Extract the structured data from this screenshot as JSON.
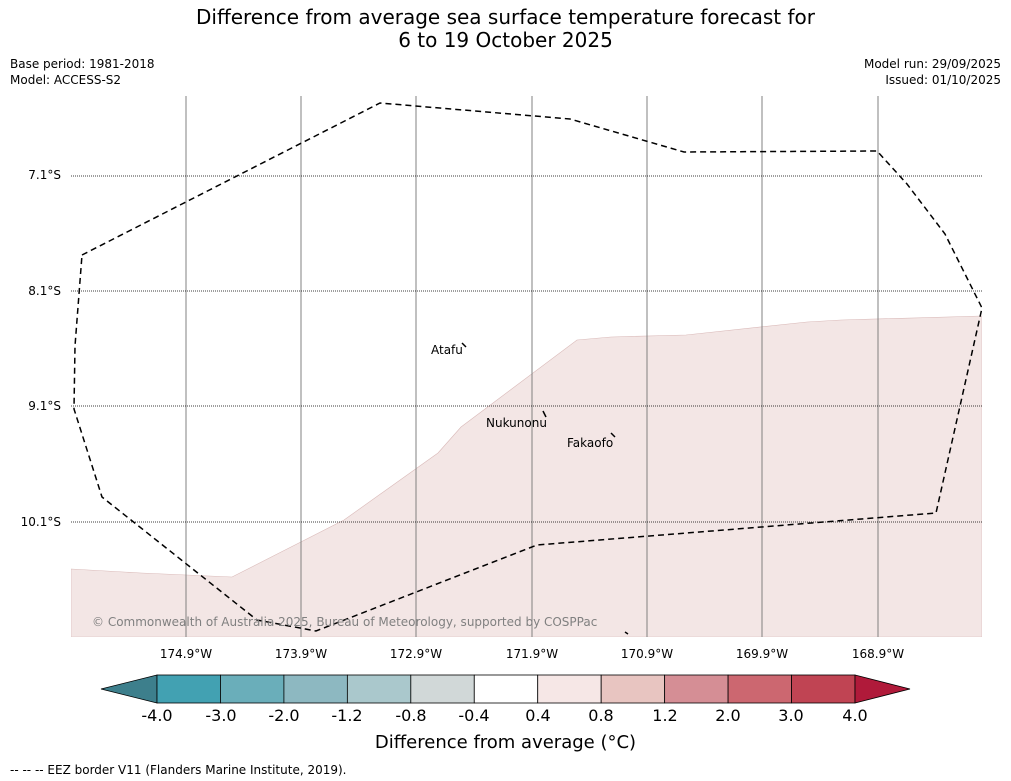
{
  "title_line1": "Difference from average sea surface temperature forecast for",
  "title_line2": "6 to 19 October 2025",
  "base_period": "Base period: 1981-2018",
  "model": "Model: ACCESS-S2",
  "model_run": "Model run: 29/09/2025",
  "issued": "Issued: 01/10/2025",
  "lat_labels": [
    "7.1°S",
    "8.1°S",
    "9.1°S",
    "10.1°S"
  ],
  "lon_labels": [
    "174.9°W",
    "173.9°W",
    "172.9°W",
    "171.9°W",
    "170.9°W",
    "169.9°W",
    "168.9°W"
  ],
  "places": {
    "atafu": "Atafu",
    "nukunonu": "Nukunonu",
    "fakaofo": "Fakaofo"
  },
  "copyright": "© Commonwealth of Australia 2025, Bureau of Meteorology, supported by COSPPac",
  "colorbar": {
    "ticks": [
      "-4.0",
      "-3.0",
      "-2.0",
      "-1.2",
      "-0.8",
      "-0.4",
      "0.4",
      "0.8",
      "1.2",
      "2.0",
      "3.0",
      "4.0"
    ],
    "colors": [
      "#42a1b2",
      "#6aaeba",
      "#8db8c1",
      "#aac8cc",
      "#d1d8d8",
      "#ffffff",
      "#f6e7e6",
      "#e8c5c1",
      "#d58e95",
      "#cc6770",
      "#c04453"
    ],
    "under_color": "#3d7f8c",
    "over_color": "#b01a3a",
    "label": "Difference from average (°C)"
  },
  "map_fill_color": "#f3e6e5",
  "footer": "--  --  -- EEZ border V11 (Flanders Marine Institute, 2019)."
}
